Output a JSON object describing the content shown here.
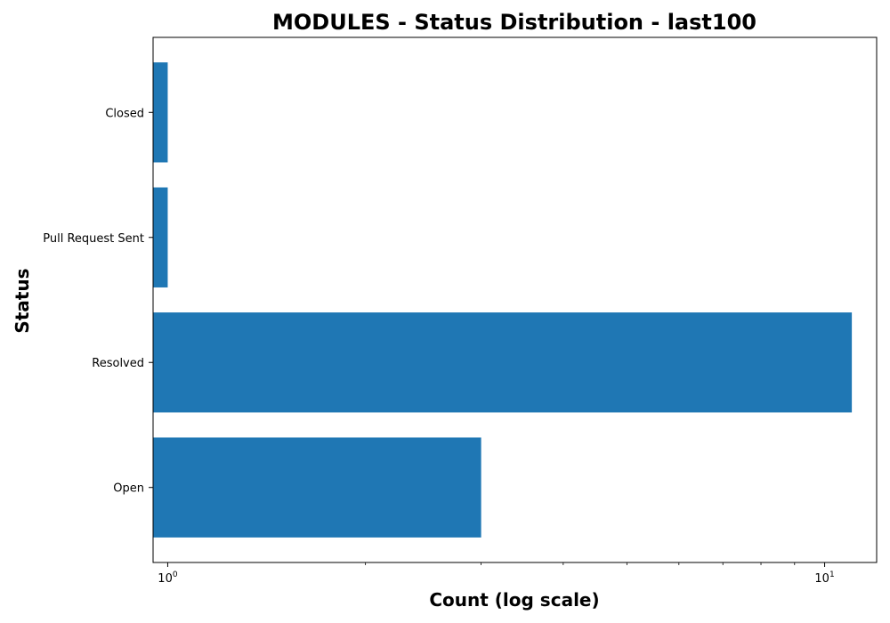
{
  "chart_data": {
    "type": "bar",
    "orientation": "horizontal",
    "title": "MODULES - Status Distribution - last100",
    "xlabel": "Count (log scale)",
    "ylabel": "Status",
    "x_scale": "log",
    "xlim": [
      0.95,
      12
    ],
    "categories": [
      "Open",
      "Resolved",
      "Pull Request Sent",
      "Closed"
    ],
    "values": [
      3,
      11,
      1,
      1
    ],
    "bar_color": "#1f77b4",
    "x_major_ticks": [
      {
        "value": 1,
        "base": "10",
        "exp": "0"
      },
      {
        "value": 10,
        "base": "10",
        "exp": "1"
      }
    ],
    "x_minor_ticks": [
      2,
      3,
      4,
      5,
      6,
      7,
      8,
      9
    ],
    "grid": false,
    "legend": "none"
  }
}
